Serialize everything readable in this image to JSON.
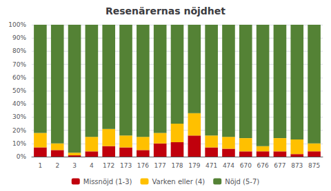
{
  "chart_data": {
    "type": "bar",
    "title": "Resenärernas nöjdhet",
    "categories": [
      "1",
      "2",
      "3",
      "4",
      "172",
      "173",
      "176",
      "177",
      "178",
      "179",
      "471",
      "474",
      "670",
      "676",
      "677",
      "873",
      "875"
    ],
    "series": [
      {
        "name": "Missnöjd (1-3)",
        "color": "#C0000C",
        "values": [
          7,
          5,
          1,
          4,
          8,
          7,
          5,
          10,
          11,
          16,
          7,
          6,
          4,
          4,
          4,
          2,
          4
        ]
      },
      {
        "name": "Varken eller (4)",
        "color": "#FFC000",
        "values": [
          11,
          5,
          2,
          11,
          13,
          9,
          10,
          8,
          14,
          17,
          9,
          9,
          10,
          4,
          10,
          11,
          6
        ]
      },
      {
        "name": "Nöjd (5-7)",
        "color": "#548235",
        "values": [
          82,
          90,
          97,
          85,
          79,
          84,
          85,
          82,
          75,
          67,
          84,
          85,
          86,
          92,
          86,
          87,
          90
        ]
      }
    ],
    "stacked": true,
    "ylim": [
      0,
      100
    ],
    "yticks": [
      {
        "value": 0,
        "label": "0%"
      },
      {
        "value": 10,
        "label": "10%"
      },
      {
        "value": 20,
        "label": "20%"
      },
      {
        "value": 30,
        "label": "30%"
      },
      {
        "value": 40,
        "label": "40%"
      },
      {
        "value": 50,
        "label": "50%"
      },
      {
        "value": 60,
        "label": "60%"
      },
      {
        "value": 70,
        "label": "70%"
      },
      {
        "value": 80,
        "label": "80%"
      },
      {
        "value": 90,
        "label": "90%"
      },
      {
        "value": 100,
        "label": "100%"
      }
    ],
    "grid": true,
    "legend": "bottom"
  }
}
